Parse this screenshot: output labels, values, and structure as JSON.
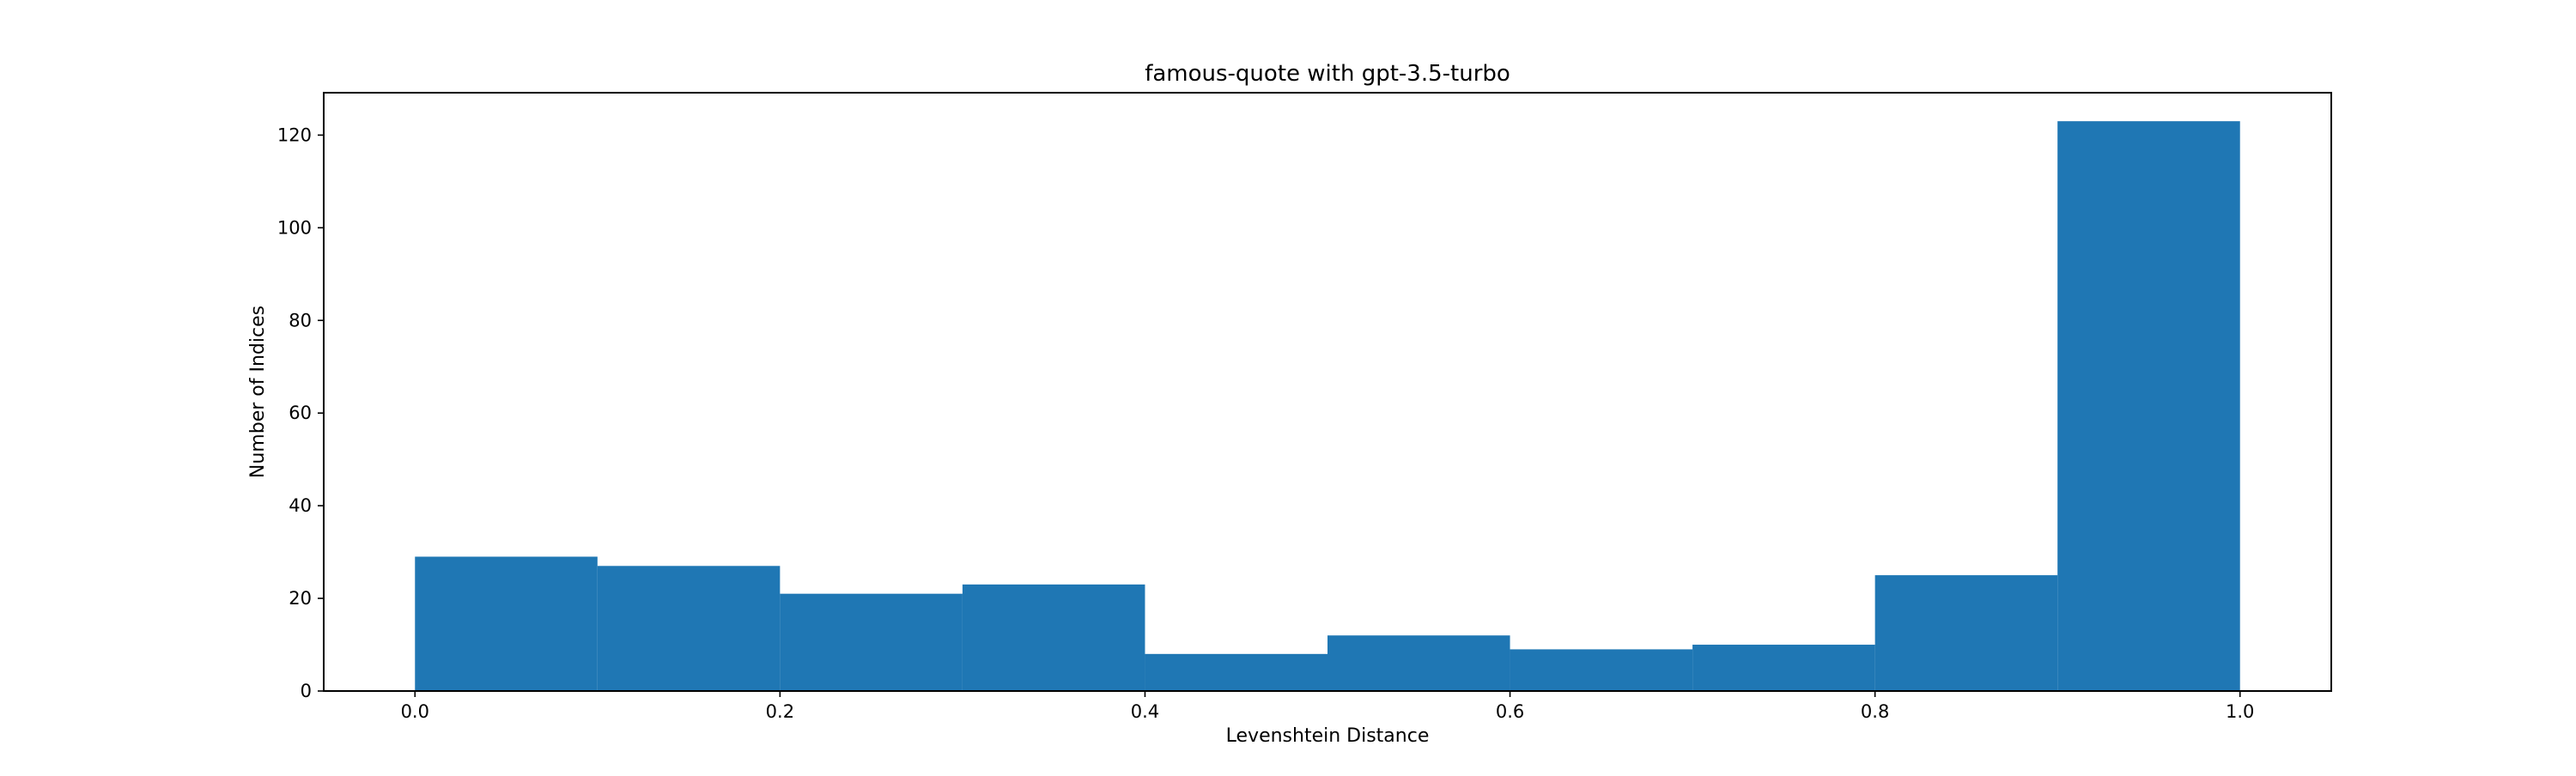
{
  "chart_data": {
    "type": "bar",
    "title": "famous-quote with gpt-3.5-turbo",
    "xlabel": "Levenshtein Distance",
    "ylabel": "Number of Indices",
    "bin_edges": [
      0.0,
      0.1,
      0.2,
      0.3,
      0.4,
      0.5,
      0.6,
      0.7,
      0.8,
      0.9,
      1.0
    ],
    "values": [
      29,
      27,
      21,
      23,
      8,
      12,
      9,
      10,
      25,
      123
    ],
    "xlim": [
      -0.05,
      1.05
    ],
    "ylim": [
      0,
      129.15
    ],
    "xticks": [
      0.0,
      0.2,
      0.4,
      0.6,
      0.8,
      1.0
    ],
    "xtick_labels": [
      "0.0",
      "0.2",
      "0.4",
      "0.6",
      "0.8",
      "1.0"
    ],
    "yticks": [
      0,
      20,
      40,
      60,
      80,
      100,
      120
    ],
    "ytick_labels": [
      "0",
      "20",
      "40",
      "60",
      "80",
      "100",
      "120"
    ],
    "grid": false,
    "bar_color": "#1f77b4"
  }
}
